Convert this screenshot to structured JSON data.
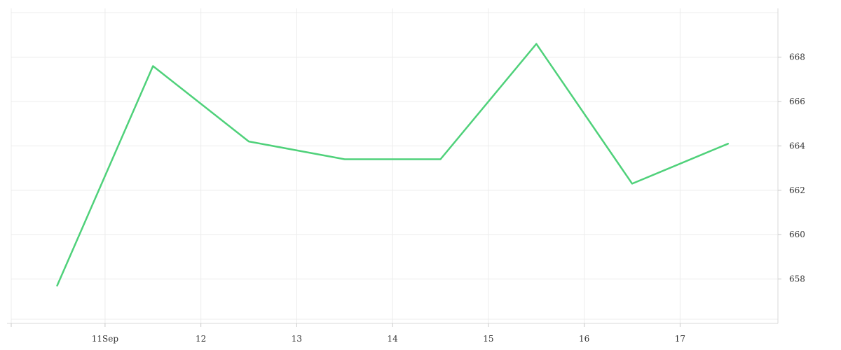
{
  "chart_data": {
    "type": "line",
    "title": "",
    "xlabel": "",
    "ylabel": "",
    "x_tick_labels": [
      {
        "x": "2023-09-11",
        "label": "11Sep"
      },
      {
        "x": "2023-09-12",
        "label": "12"
      },
      {
        "x": "2023-09-13",
        "label": "13"
      },
      {
        "x": "2023-09-14",
        "label": "14"
      },
      {
        "x": "2023-09-15",
        "label": "15"
      },
      {
        "x": "2023-09-16",
        "label": "16"
      },
      {
        "x": "2023-09-17",
        "label": "17"
      }
    ],
    "y_ticks": [
      658,
      660,
      662,
      664,
      666,
      668
    ],
    "y_axis_position": "right",
    "xlim": [
      "2023-09-10 00:30",
      "2023-09-18 00:30"
    ],
    "ylim": [
      656.0,
      670.2
    ],
    "grid": true,
    "legend": "none",
    "series": [
      {
        "color": "#4fd17a",
        "points": [
          {
            "x": "2023-09-10 12:00",
            "y": 657.7
          },
          {
            "x": "2023-09-11 12:00",
            "y": 667.6
          },
          {
            "x": "2023-09-12 12:00",
            "y": 664.2
          },
          {
            "x": "2023-09-13 12:00",
            "y": 663.4
          },
          {
            "x": "2023-09-14 12:00",
            "y": 663.4
          },
          {
            "x": "2023-09-15 12:00",
            "y": 668.6
          },
          {
            "x": "2023-09-16 12:00",
            "y": 662.3
          },
          {
            "x": "2023-09-17 12:00",
            "y": 664.1
          }
        ]
      }
    ]
  }
}
